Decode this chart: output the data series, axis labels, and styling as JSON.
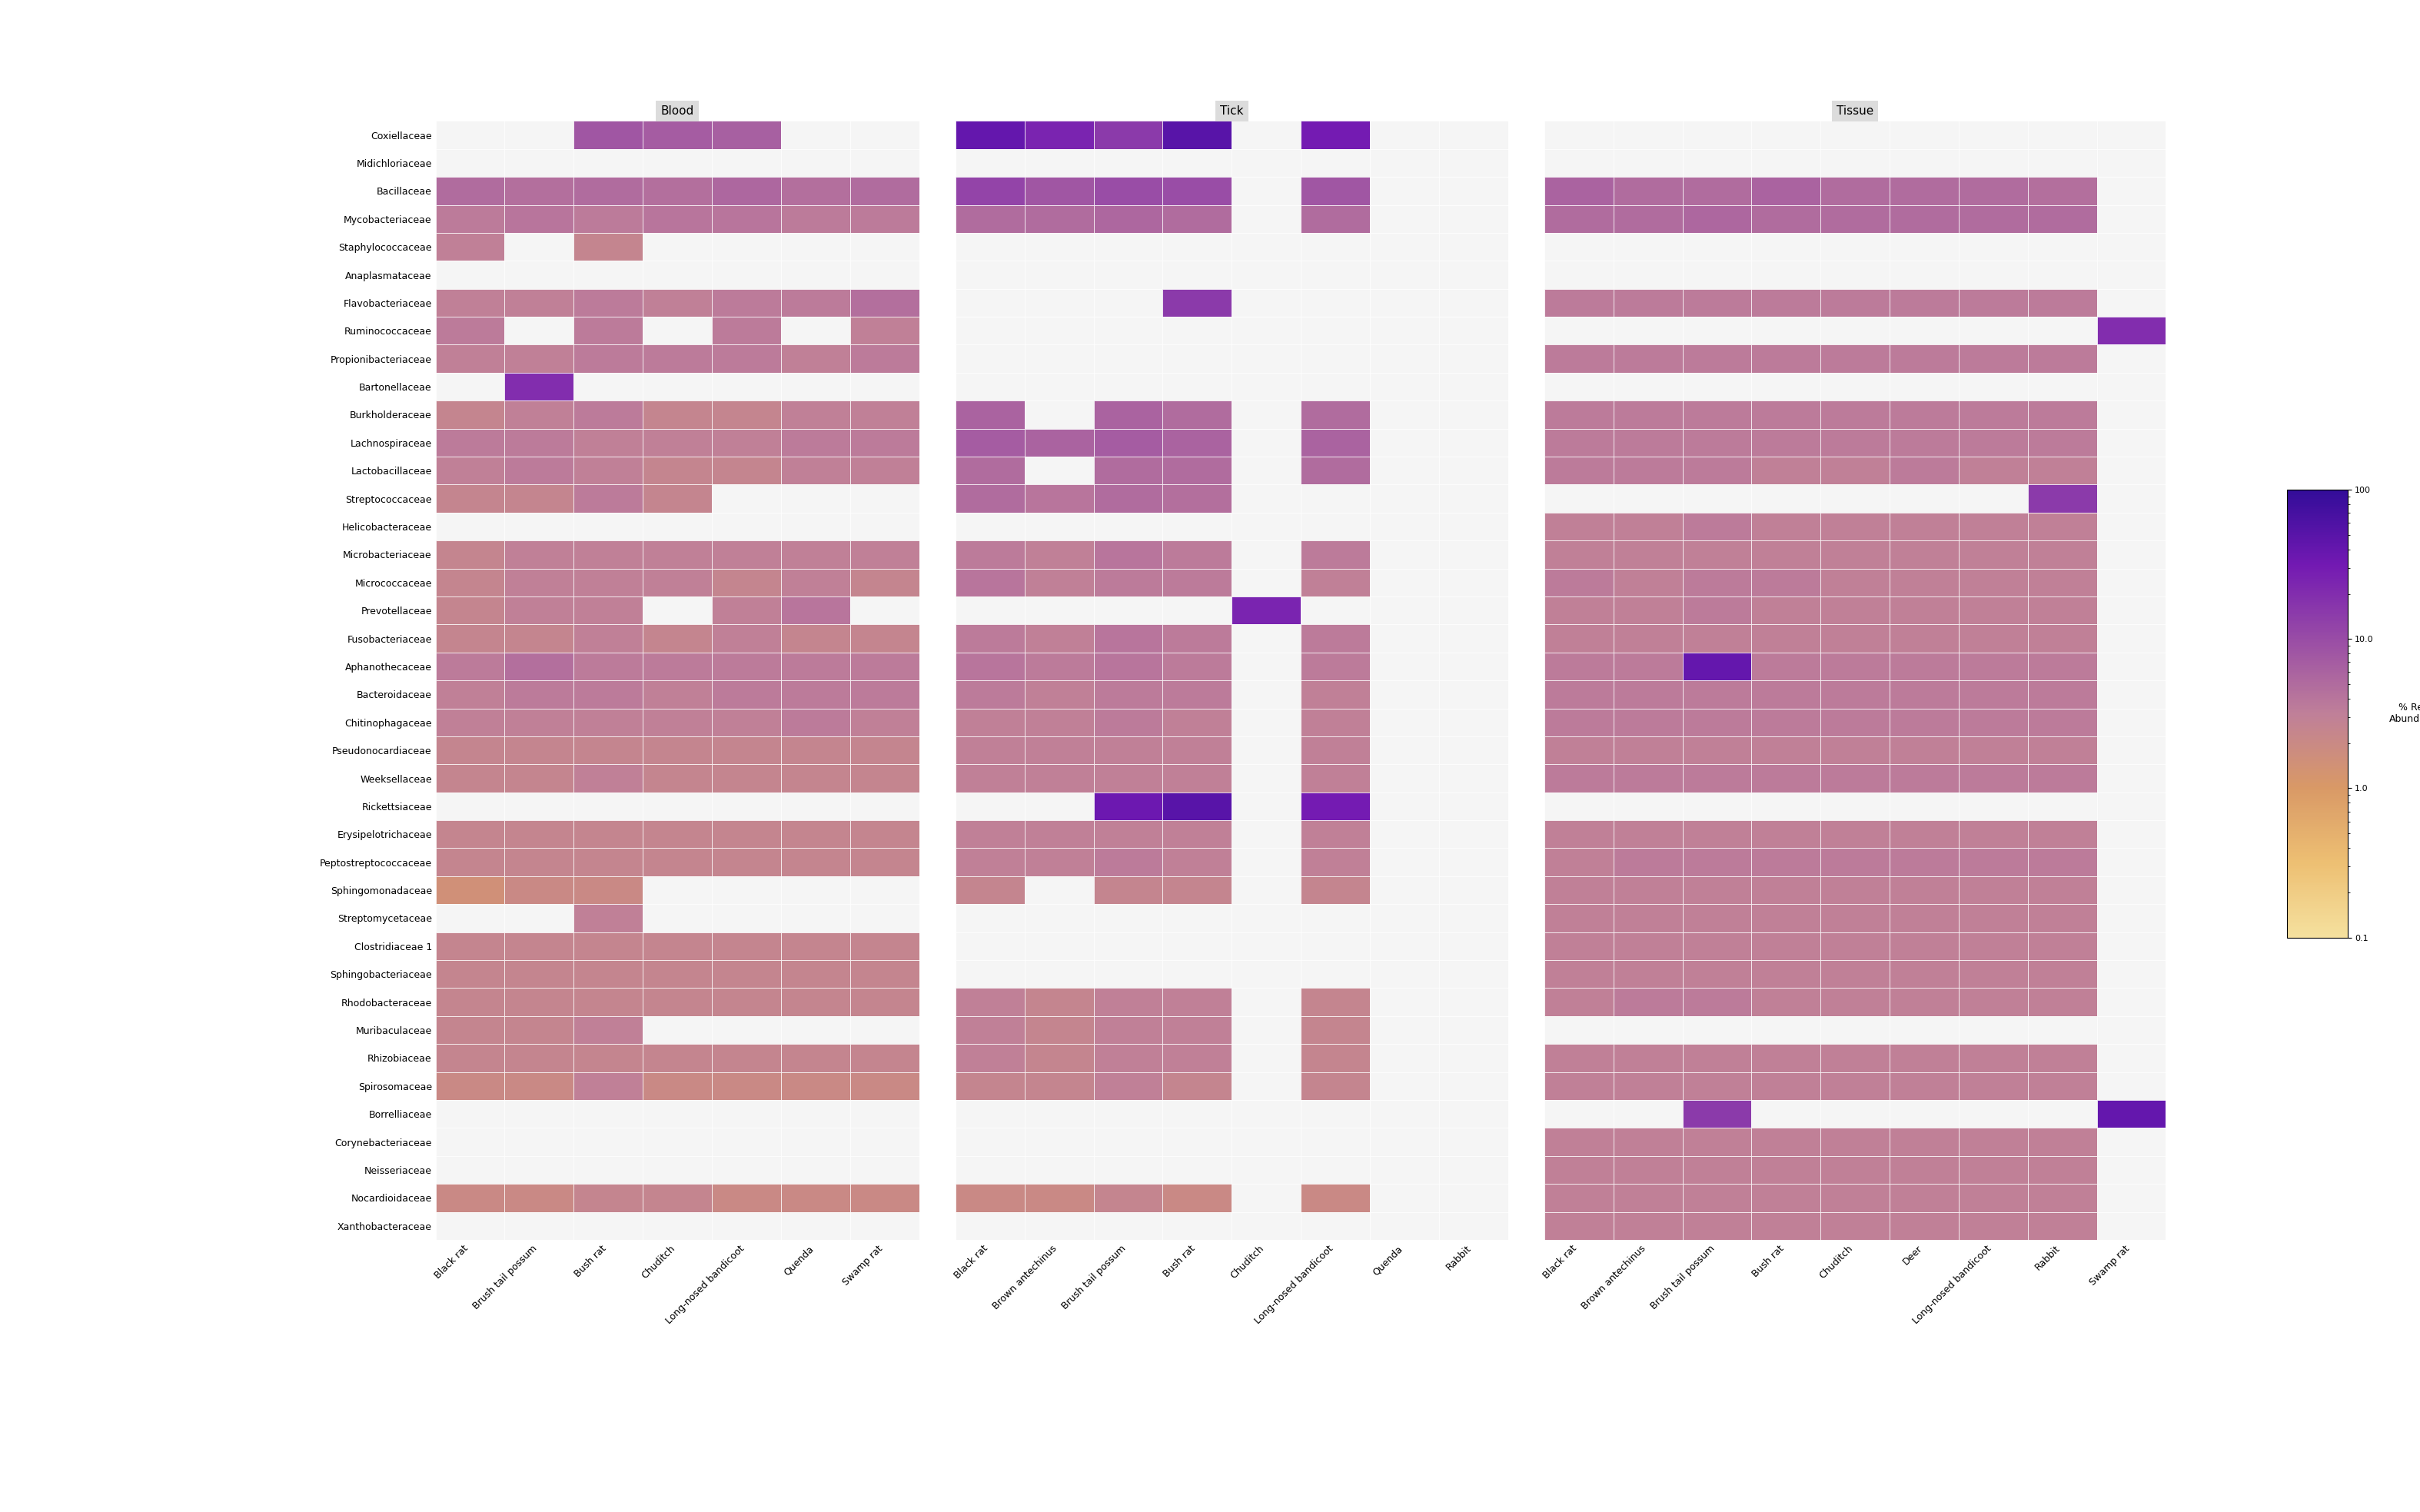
{
  "taxa": [
    "Coxiellaceae",
    "Midichloriaceae",
    "Bacillaceae",
    "Mycobacteriaceae",
    "Staphylococcaceae",
    "Anaplasmataceae",
    "Flavobacteriaceae",
    "Ruminococcaceae",
    "Propionibacteriaceae",
    "Bartonellaceae",
    "Burkholderaceae",
    "Lachnospiraceae",
    "Lactobacillaceae",
    "Streptococcaceae",
    "Helicobacteraceae",
    "Microbacteriaceae",
    "Micrococcaceae",
    "Prevotellaceae",
    "Fusobacteriaceae",
    "Aphanothecaceae",
    "Bacteroidaceae",
    "Chitinophagaceae",
    "Pseudonocardiaceae",
    "Weeksellaceae",
    "Rickettsiaceae",
    "Erysipelotrichaceae",
    "Peptostreptococcaceae",
    "Sphingomonadaceae",
    "Streptomycetaceae",
    "Clostridiaceae 1",
    "Sphingobacteriaceae",
    "Rhodobacteraceae",
    "Muribaculaceae",
    "Rhizobiaceae",
    "Spirosomaceae",
    "Borrelliaceae",
    "Corynebacteriaceae",
    "Neisseriaceae",
    "Nocardioidaceae",
    "Xanthobacteraceae"
  ],
  "blood_hosts": [
    "Black rat",
    "Brush tail possum",
    "Bush rat",
    "Chuditch",
    "Long-nosed bandicoot",
    "Quenda",
    "Swamp rat"
  ],
  "tick_hosts": [
    "Black rat",
    "Brown antechinus",
    "Brush tail possum",
    "Bush rat",
    "Chuditch",
    "Long-nosed bandicoot",
    "Quenda",
    "Rabbit"
  ],
  "tissue_hosts": [
    "Black rat",
    "Brown antechinus",
    "Brush tail possum",
    "Bush rat",
    "Chuditch",
    "Deer",
    "Long-nosed bandicoot",
    "Rabbit",
    "Swamp rat"
  ],
  "colormap_min": 0.1,
  "colormap_max": 100.0,
  "nan_color": "#f5f5f5",
  "blood_data": [
    [
      null,
      null,
      8.0,
      7.0,
      6.5,
      null,
      null
    ],
    [
      null,
      null,
      null,
      null,
      null,
      null,
      null
    ],
    [
      5.0,
      4.5,
      5.0,
      4.5,
      5.5,
      4.5,
      5.0
    ],
    [
      3.5,
      4.0,
      3.5,
      4.0,
      4.0,
      3.5,
      3.5
    ],
    [
      3.0,
      null,
      2.5,
      null,
      null,
      null,
      null
    ],
    [
      null,
      null,
      null,
      null,
      null,
      null,
      null
    ],
    [
      3.0,
      3.0,
      3.5,
      3.0,
      3.5,
      3.5,
      4.5
    ],
    [
      3.5,
      null,
      3.5,
      null,
      3.5,
      null,
      3.0
    ],
    [
      3.0,
      3.0,
      3.5,
      3.5,
      3.5,
      3.0,
      3.5
    ],
    [
      null,
      20.0,
      null,
      null,
      null,
      null,
      null
    ],
    [
      2.5,
      3.0,
      3.5,
      2.5,
      2.5,
      3.0,
      3.0
    ],
    [
      3.5,
      3.5,
      3.0,
      3.0,
      3.0,
      3.5,
      3.5
    ],
    [
      3.0,
      3.5,
      3.0,
      2.5,
      2.5,
      3.0,
      3.0
    ],
    [
      2.5,
      2.5,
      3.5,
      2.5,
      null,
      null,
      null
    ],
    [
      null,
      null,
      null,
      null,
      null,
      null,
      null
    ],
    [
      2.5,
      3.0,
      3.0,
      3.0,
      3.0,
      3.0,
      3.0
    ],
    [
      2.5,
      3.0,
      3.0,
      3.0,
      2.5,
      3.0,
      2.5
    ],
    [
      2.5,
      3.0,
      3.0,
      null,
      3.0,
      4.0,
      null
    ],
    [
      2.5,
      2.5,
      3.0,
      2.5,
      3.0,
      2.5,
      2.5
    ],
    [
      3.5,
      4.5,
      3.5,
      3.5,
      3.5,
      3.5,
      3.5
    ],
    [
      3.0,
      3.5,
      3.5,
      3.0,
      3.5,
      3.5,
      3.5
    ],
    [
      3.0,
      3.0,
      3.0,
      3.0,
      3.0,
      3.5,
      3.0
    ],
    [
      2.5,
      2.5,
      2.5,
      2.5,
      2.5,
      2.5,
      2.5
    ],
    [
      2.5,
      2.5,
      3.0,
      2.5,
      2.5,
      2.5,
      2.5
    ],
    [
      null,
      null,
      null,
      null,
      null,
      null,
      null
    ],
    [
      2.5,
      2.5,
      2.5,
      2.5,
      2.5,
      2.5,
      2.5
    ],
    [
      2.5,
      2.5,
      2.5,
      2.5,
      2.5,
      2.5,
      2.5
    ],
    [
      1.5,
      2.0,
      2.0,
      null,
      null,
      null,
      null
    ],
    [
      null,
      null,
      3.0,
      null,
      null,
      null,
      null
    ],
    [
      2.5,
      2.5,
      2.5,
      2.5,
      2.5,
      2.5,
      2.5
    ],
    [
      2.5,
      2.5,
      2.5,
      2.5,
      2.5,
      2.5,
      2.5
    ],
    [
      2.5,
      2.5,
      2.5,
      2.5,
      2.5,
      2.5,
      2.5
    ],
    [
      2.5,
      2.5,
      3.0,
      null,
      null,
      null,
      null
    ],
    [
      2.5,
      2.5,
      2.5,
      2.5,
      2.5,
      2.5,
      2.5
    ],
    [
      2.0,
      2.0,
      3.0,
      2.0,
      2.0,
      2.0,
      2.0
    ],
    [
      null,
      null,
      null,
      null,
      null,
      null,
      null
    ],
    [
      null,
      null,
      null,
      null,
      null,
      null,
      null
    ],
    [
      null,
      null,
      null,
      null,
      null,
      null,
      null
    ],
    [
      2.0,
      2.0,
      2.5,
      2.5,
      2.0,
      2.0,
      2.0
    ],
    [
      null,
      null,
      null,
      null,
      null,
      null,
      null
    ]
  ],
  "tick_data": [
    [
      40.0,
      25.0,
      15.0,
      50.0,
      null,
      30.0,
      null,
      null
    ],
    [
      null,
      null,
      null,
      null,
      null,
      null,
      null,
      null
    ],
    [
      12.0,
      8.0,
      10.0,
      10.0,
      null,
      8.0,
      null,
      null
    ],
    [
      5.0,
      5.0,
      5.5,
      5.0,
      null,
      5.0,
      null,
      null
    ],
    [
      null,
      null,
      null,
      null,
      null,
      null,
      null,
      null
    ],
    [
      null,
      null,
      null,
      null,
      null,
      null,
      null,
      null
    ],
    [
      null,
      null,
      null,
      15.0,
      null,
      null,
      null,
      null
    ],
    [
      null,
      null,
      null,
      null,
      null,
      null,
      null,
      null
    ],
    [
      null,
      null,
      null,
      null,
      null,
      null,
      null,
      null
    ],
    [
      null,
      null,
      null,
      null,
      null,
      null,
      null,
      null
    ],
    [
      6.0,
      null,
      6.0,
      5.0,
      null,
      5.0,
      null,
      null
    ],
    [
      7.0,
      6.0,
      7.0,
      6.0,
      null,
      6.0,
      null,
      null
    ],
    [
      5.0,
      null,
      5.0,
      5.0,
      null,
      5.0,
      null,
      null
    ],
    [
      5.0,
      4.0,
      5.0,
      4.5,
      null,
      null,
      null,
      null
    ],
    [
      null,
      null,
      null,
      null,
      null,
      null,
      null,
      null
    ],
    [
      3.5,
      3.0,
      4.0,
      3.5,
      null,
      3.5,
      null,
      null
    ],
    [
      4.0,
      3.0,
      3.5,
      3.5,
      null,
      3.0,
      null,
      null
    ],
    [
      null,
      null,
      null,
      null,
      25.0,
      null,
      null,
      null
    ],
    [
      3.5,
      3.0,
      4.0,
      3.5,
      null,
      3.5,
      null,
      null
    ],
    [
      4.0,
      3.5,
      4.0,
      3.5,
      null,
      3.5,
      null,
      null
    ],
    [
      3.5,
      3.0,
      3.5,
      3.5,
      null,
      3.0,
      null,
      null
    ],
    [
      3.0,
      3.0,
      3.5,
      3.0,
      null,
      3.0,
      null,
      null
    ],
    [
      3.0,
      3.0,
      3.0,
      3.0,
      null,
      3.0,
      null,
      null
    ],
    [
      3.0,
      3.0,
      3.0,
      3.0,
      null,
      3.0,
      null,
      null
    ],
    [
      null,
      null,
      35.0,
      50.0,
      null,
      30.0,
      null,
      null
    ],
    [
      3.0,
      3.0,
      3.0,
      3.0,
      null,
      3.0,
      null,
      null
    ],
    [
      3.0,
      3.0,
      3.5,
      3.0,
      null,
      3.0,
      null,
      null
    ],
    [
      2.5,
      null,
      2.5,
      2.5,
      null,
      2.5,
      null,
      null
    ],
    [
      null,
      null,
      null,
      null,
      null,
      null,
      null,
      null
    ],
    [
      null,
      null,
      null,
      null,
      null,
      null,
      null,
      null
    ],
    [
      null,
      null,
      null,
      null,
      null,
      null,
      null,
      null
    ],
    [
      3.0,
      2.5,
      3.0,
      3.0,
      null,
      2.5,
      null,
      null
    ],
    [
      3.0,
      2.5,
      3.0,
      3.0,
      null,
      2.5,
      null,
      null
    ],
    [
      3.0,
      2.5,
      3.0,
      3.0,
      null,
      2.5,
      null,
      null
    ],
    [
      2.5,
      2.5,
      3.0,
      2.5,
      null,
      2.5,
      null,
      null
    ],
    [
      null,
      null,
      null,
      null,
      null,
      null,
      null,
      null
    ],
    [
      null,
      null,
      null,
      null,
      null,
      null,
      null,
      null
    ],
    [
      null,
      null,
      null,
      null,
      null,
      null,
      null,
      null
    ],
    [
      2.0,
      2.0,
      2.5,
      2.0,
      null,
      2.0,
      null,
      null
    ],
    [
      null,
      null,
      null,
      null,
      null,
      null,
      null,
      null
    ]
  ],
  "tissue_data": [
    [
      null,
      null,
      null,
      null,
      null,
      null,
      null,
      null,
      null
    ],
    [
      null,
      null,
      null,
      null,
      null,
      null,
      null,
      null,
      null
    ],
    [
      6.0,
      5.0,
      5.0,
      6.0,
      5.0,
      5.0,
      5.0,
      4.5,
      null
    ],
    [
      5.0,
      5.0,
      5.5,
      5.0,
      5.0,
      5.0,
      5.0,
      5.0,
      null
    ],
    [
      null,
      null,
      null,
      null,
      null,
      null,
      null,
      null,
      null
    ],
    [
      null,
      null,
      null,
      null,
      null,
      null,
      null,
      null,
      null
    ],
    [
      3.5,
      3.5,
      3.5,
      3.5,
      3.5,
      3.5,
      3.5,
      3.5,
      null
    ],
    [
      null,
      null,
      null,
      null,
      null,
      null,
      null,
      null,
      20.0
    ],
    [
      3.5,
      3.5,
      3.5,
      3.5,
      3.5,
      3.5,
      3.5,
      3.5,
      null
    ],
    [
      null,
      null,
      null,
      null,
      null,
      null,
      null,
      null,
      null
    ],
    [
      3.5,
      3.5,
      3.5,
      3.5,
      3.5,
      3.5,
      3.5,
      3.5,
      null
    ],
    [
      3.5,
      3.5,
      3.5,
      3.5,
      3.5,
      3.5,
      3.5,
      3.5,
      null
    ],
    [
      3.5,
      3.5,
      3.5,
      3.0,
      3.0,
      3.5,
      3.0,
      3.0,
      null
    ],
    [
      null,
      null,
      null,
      null,
      null,
      null,
      null,
      15.0,
      null
    ],
    [
      3.0,
      3.0,
      3.5,
      3.0,
      3.0,
      3.0,
      3.0,
      3.0,
      null
    ],
    [
      3.0,
      3.0,
      3.0,
      3.0,
      3.0,
      3.0,
      3.0,
      3.0,
      null
    ],
    [
      3.5,
      3.0,
      3.5,
      3.5,
      3.0,
      3.0,
      3.0,
      3.0,
      null
    ],
    [
      3.0,
      3.0,
      3.5,
      3.0,
      3.0,
      3.0,
      3.0,
      3.0,
      null
    ],
    [
      3.0,
      3.0,
      3.0,
      3.0,
      3.0,
      3.0,
      3.0,
      3.0,
      null
    ],
    [
      3.5,
      3.5,
      40.0,
      3.5,
      3.5,
      3.5,
      3.5,
      3.5,
      null
    ],
    [
      3.5,
      3.5,
      3.5,
      3.5,
      3.5,
      3.5,
      3.5,
      3.5,
      null
    ],
    [
      3.5,
      3.5,
      3.5,
      3.5,
      3.5,
      3.5,
      3.5,
      3.5,
      null
    ],
    [
      3.0,
      3.0,
      3.0,
      3.0,
      3.0,
      3.0,
      3.0,
      3.0,
      null
    ],
    [
      3.5,
      3.5,
      3.5,
      3.5,
      3.5,
      3.5,
      3.5,
      3.5,
      null
    ],
    [
      null,
      null,
      null,
      null,
      null,
      null,
      null,
      null,
      null
    ],
    [
      3.0,
      3.0,
      3.0,
      3.0,
      3.0,
      3.0,
      3.0,
      3.0,
      null
    ],
    [
      3.0,
      3.5,
      3.5,
      3.5,
      3.5,
      3.5,
      3.5,
      3.5,
      null
    ],
    [
      3.0,
      3.0,
      3.0,
      3.0,
      3.0,
      3.0,
      3.0,
      3.0,
      null
    ],
    [
      3.0,
      3.0,
      3.0,
      3.0,
      3.0,
      3.0,
      3.0,
      3.0,
      null
    ],
    [
      3.0,
      3.0,
      3.0,
      3.0,
      3.0,
      3.0,
      3.0,
      3.0,
      null
    ],
    [
      3.0,
      3.0,
      3.0,
      3.0,
      3.0,
      3.0,
      3.0,
      3.0,
      null
    ],
    [
      3.0,
      3.5,
      3.5,
      3.0,
      3.0,
      3.0,
      3.0,
      3.0,
      null
    ],
    [
      null,
      null,
      null,
      null,
      null,
      null,
      null,
      null,
      null
    ],
    [
      3.0,
      3.0,
      3.0,
      3.0,
      3.0,
      3.0,
      3.0,
      3.0,
      null
    ],
    [
      3.0,
      3.0,
      3.0,
      3.0,
      3.0,
      3.0,
      3.0,
      3.0,
      null
    ],
    [
      null,
      null,
      15.0,
      null,
      null,
      null,
      null,
      null,
      40.0
    ],
    [
      3.0,
      3.0,
      3.0,
      3.0,
      3.0,
      3.0,
      3.0,
      3.0,
      null
    ],
    [
      3.0,
      3.0,
      3.0,
      3.0,
      3.0,
      3.0,
      3.0,
      3.0,
      null
    ],
    [
      3.0,
      3.0,
      3.0,
      3.0,
      3.0,
      3.0,
      3.0,
      3.0,
      null
    ],
    [
      3.0,
      3.0,
      3.0,
      3.0,
      3.0,
      3.0,
      3.0,
      3.0,
      null
    ]
  ]
}
